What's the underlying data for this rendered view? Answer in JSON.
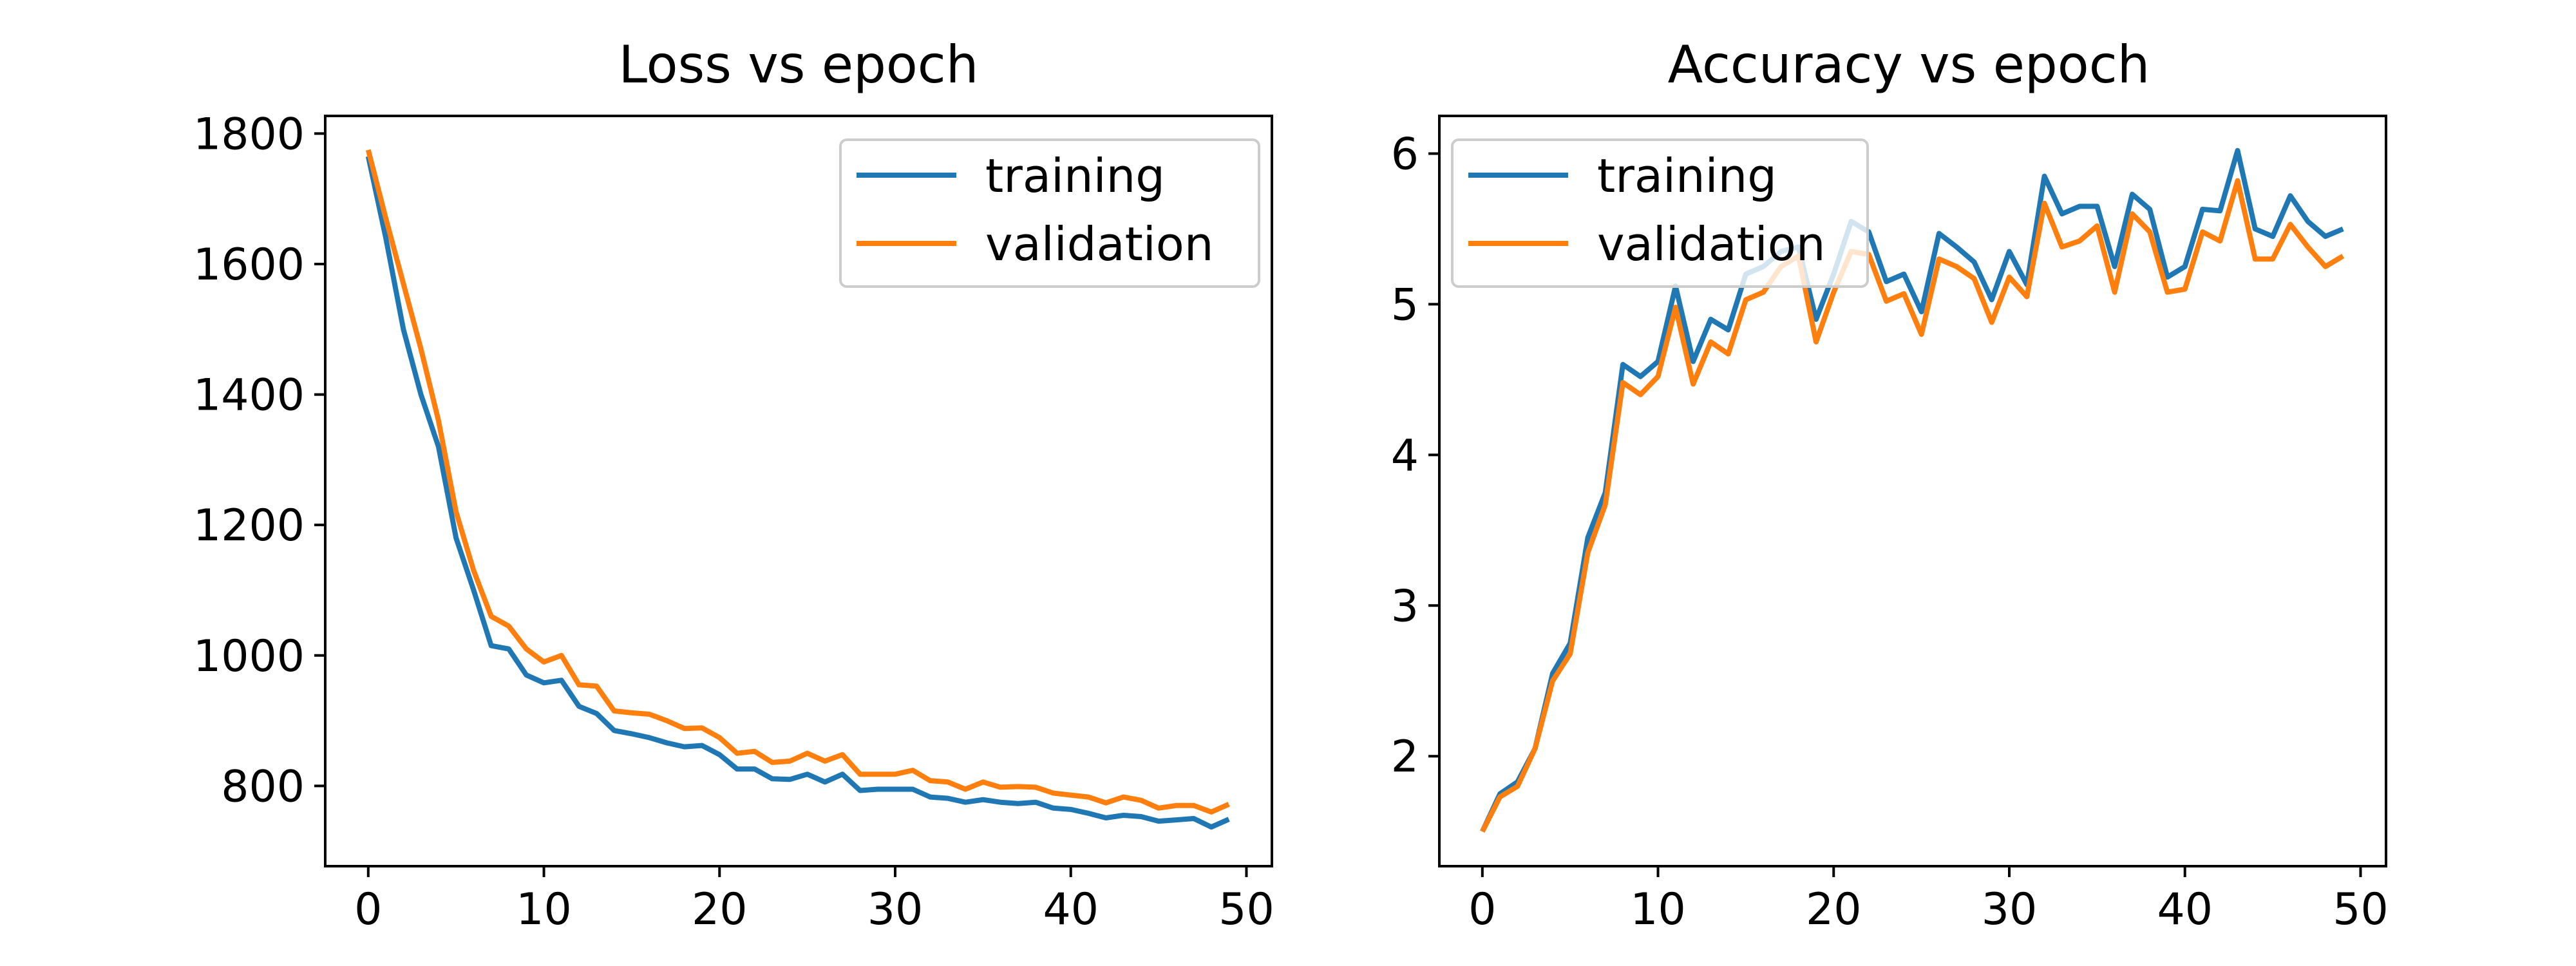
{
  "colors": {
    "training": "#1f77b4",
    "validation": "#ff7f0e"
  },
  "chart_data": [
    {
      "type": "line",
      "title": "Loss vs epoch",
      "xlabel": "",
      "ylabel": "",
      "xlim": [
        -2.45,
        51.45
      ],
      "ylim": [
        677,
        1827
      ],
      "xticks": [
        0,
        10,
        20,
        30,
        40,
        50
      ],
      "yticks": [
        800,
        1000,
        1200,
        1400,
        1600,
        1800
      ],
      "grid": false,
      "legend": "top-right",
      "x": [
        0,
        1,
        2,
        3,
        4,
        5,
        6,
        7,
        8,
        9,
        10,
        11,
        12,
        13,
        14,
        15,
        16,
        17,
        18,
        19,
        20,
        21,
        22,
        23,
        24,
        25,
        26,
        27,
        28,
        29,
        30,
        31,
        32,
        33,
        34,
        35,
        36,
        37,
        38,
        39,
        40,
        41,
        42,
        43,
        44,
        45,
        46,
        47,
        48,
        49
      ],
      "series": [
        {
          "name": "training",
          "color": "#1f77b4",
          "values": [
            1765,
            1640,
            1500,
            1400,
            1320,
            1180,
            1100,
            1015,
            1010,
            970,
            958,
            962,
            922,
            911,
            885,
            880,
            874,
            866,
            860,
            862,
            848,
            826,
            826,
            811,
            810,
            818,
            806,
            818,
            793,
            795,
            795,
            795,
            783,
            781,
            775,
            779,
            775,
            773,
            775,
            766,
            764,
            758,
            751,
            755,
            753,
            746,
            748,
            750,
            737,
            749
          ]
        },
        {
          "name": "validation",
          "color": "#ff7f0e",
          "values": [
            1775,
            1670,
            1570,
            1470,
            1360,
            1220,
            1130,
            1060,
            1045,
            1010,
            990,
            1000,
            955,
            953,
            915,
            912,
            910,
            900,
            888,
            889,
            874,
            850,
            853,
            836,
            838,
            850,
            838,
            848,
            818,
            818,
            818,
            824,
            808,
            806,
            795,
            806,
            798,
            799,
            798,
            789,
            786,
            783,
            774,
            783,
            778,
            766,
            770,
            770,
            760,
            772
          ]
        }
      ]
    },
    {
      "type": "line",
      "title": "Accuracy vs epoch",
      "xlabel": "",
      "ylabel": "",
      "xlim": [
        -2.45,
        51.45
      ],
      "ylim": [
        1.27,
        6.25
      ],
      "xticks": [
        0,
        10,
        20,
        30,
        40,
        50
      ],
      "yticks": [
        2,
        3,
        4,
        5,
        6
      ],
      "grid": false,
      "legend": "top-left",
      "x": [
        0,
        1,
        2,
        3,
        4,
        5,
        6,
        7,
        8,
        9,
        10,
        11,
        12,
        13,
        14,
        15,
        16,
        17,
        18,
        19,
        20,
        21,
        22,
        23,
        24,
        25,
        26,
        27,
        28,
        29,
        30,
        31,
        32,
        33,
        34,
        35,
        36,
        37,
        38,
        39,
        40,
        41,
        42,
        43,
        44,
        45,
        46,
        47,
        48,
        49
      ],
      "series": [
        {
          "name": "training",
          "color": "#1f77b4",
          "values": [
            1.5,
            1.75,
            1.83,
            2.05,
            2.55,
            2.75,
            3.45,
            3.75,
            4.6,
            4.52,
            4.62,
            5.12,
            4.62,
            4.9,
            4.83,
            5.2,
            5.25,
            5.35,
            5.38,
            4.9,
            5.2,
            5.55,
            5.48,
            5.15,
            5.2,
            4.95,
            5.47,
            5.38,
            5.28,
            5.03,
            5.35,
            5.13,
            5.85,
            5.6,
            5.65,
            5.65,
            5.25,
            5.73,
            5.63,
            5.18,
            5.25,
            5.63,
            5.62,
            6.02,
            5.5,
            5.45,
            5.72,
            5.55,
            5.45,
            5.5
          ]
        },
        {
          "name": "validation",
          "color": "#ff7f0e",
          "values": [
            1.5,
            1.73,
            1.8,
            2.05,
            2.5,
            2.68,
            3.35,
            3.67,
            4.48,
            4.4,
            4.52,
            4.98,
            4.47,
            4.75,
            4.67,
            5.03,
            5.08,
            5.25,
            5.32,
            4.75,
            5.08,
            5.35,
            5.33,
            5.02,
            5.07,
            4.8,
            5.3,
            5.25,
            5.17,
            4.88,
            5.18,
            5.05,
            5.67,
            5.38,
            5.42,
            5.52,
            5.08,
            5.6,
            5.48,
            5.08,
            5.1,
            5.48,
            5.42,
            5.82,
            5.3,
            5.3,
            5.53,
            5.38,
            5.25,
            5.32
          ]
        }
      ]
    }
  ]
}
